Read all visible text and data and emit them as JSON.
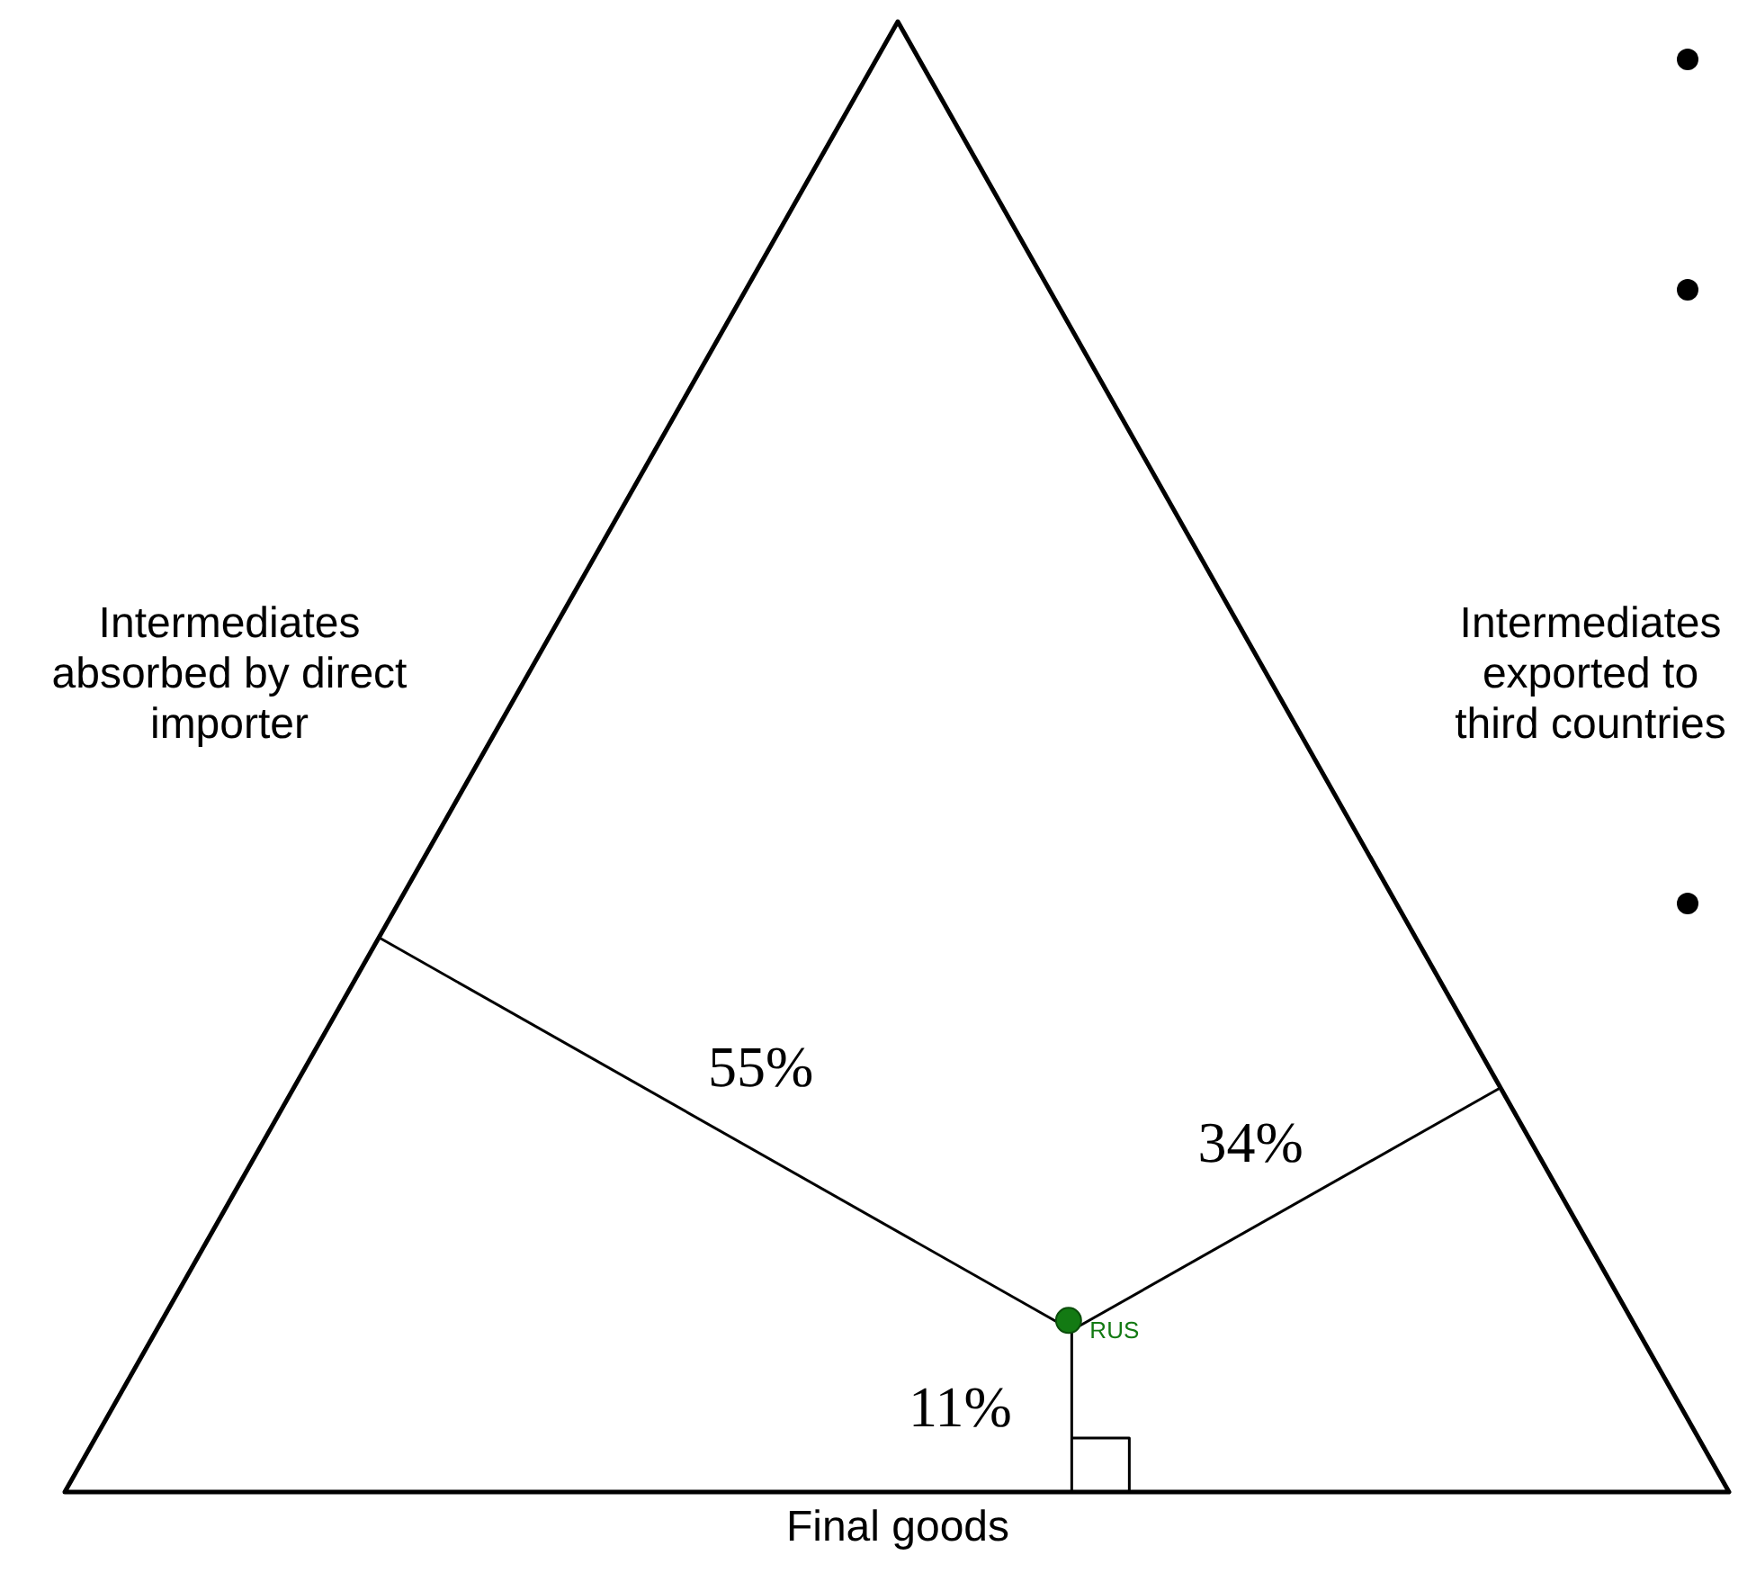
{
  "chart_data": {
    "type": "other",
    "categories": [
      "Intermediates absorbed by direct importer",
      "Intermediates exported to third countries",
      "Final goods"
    ],
    "series": [
      {
        "name": "RUS",
        "color": "#137a13",
        "values": [
          55,
          34,
          11
        ],
        "value_labels": [
          "55%",
          "34%",
          "11%"
        ]
      }
    ]
  }
}
